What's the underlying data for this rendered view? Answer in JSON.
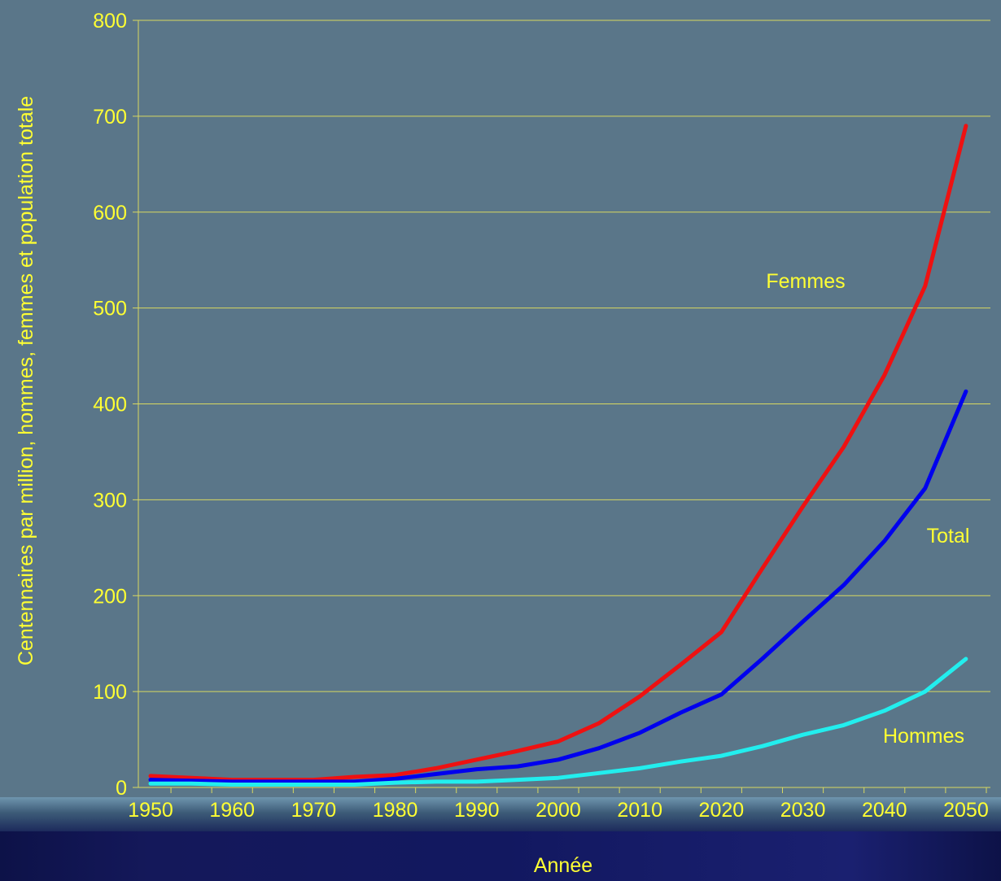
{
  "chart_data": {
    "type": "line",
    "xlabel": "Année",
    "ylabel": "Centennaires par million, hommes, femmes et population totale",
    "ylim": [
      0,
      800
    ],
    "y_ticks": [
      "0",
      "100",
      "200",
      "300",
      "400",
      "500",
      "600",
      "700",
      "800"
    ],
    "x_tick_labels": [
      "1950",
      "1960",
      "1970",
      "1980",
      "1990",
      "2000",
      "2010",
      "2020",
      "2030",
      "2040",
      "2050"
    ],
    "grid": "horizontal",
    "x": [
      1950,
      1955,
      1960,
      1965,
      1970,
      1975,
      1980,
      1985,
      1990,
      1995,
      2000,
      2005,
      2010,
      2015,
      2020,
      2025,
      2030,
      2035,
      2040,
      2045,
      2050
    ],
    "series": [
      {
        "name": "Femmes",
        "color": "#ee1111",
        "values": [
          12,
          10,
          8,
          8,
          8,
          11,
          13,
          20,
          29,
          38,
          48,
          67,
          95,
          128,
          162,
          228,
          293,
          355,
          430,
          523,
          690
        ]
      },
      {
        "name": "Total",
        "color": "#0000ee",
        "values": [
          8,
          7,
          6,
          6,
          6,
          6,
          9,
          14,
          19,
          22,
          29,
          41,
          57,
          78,
          97,
          134,
          173,
          211,
          257,
          312,
          413
        ]
      },
      {
        "name": "Hommes",
        "color": "#22eeee",
        "values": [
          4,
          4,
          3,
          3,
          3,
          3,
          5,
          6,
          6,
          8,
          10,
          15,
          20,
          27,
          33,
          43,
          55,
          65,
          80,
          100,
          134
        ]
      }
    ]
  }
}
